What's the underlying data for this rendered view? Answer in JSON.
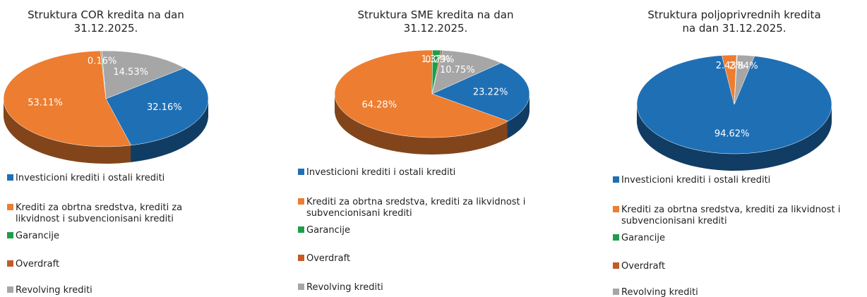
{
  "chart_data": [
    {
      "type": "pie",
      "title": "Struktura COR kredita na dan 31.12.2025.",
      "categories": [
        "Investicioni krediti i ostali krediti",
        "Krediti za obrtna sredstva, krediti za likvidnost i subvencionisani krediti",
        "Garancije",
        "Overdraft",
        "Revolving krediti"
      ],
      "values": [
        32.16,
        53.11,
        0.16,
        0.04,
        14.53
      ],
      "value_labels": [
        "32.16%",
        "53.11%",
        "0.16%",
        null,
        "14.53%"
      ],
      "colors": [
        "#1f6fb5",
        "#ed7d31",
        "#1e9e4a",
        "#c55a28",
        "#a6a6a6"
      ]
    },
    {
      "type": "pie",
      "title": "Struktura SME kredita na dan 31.12.2025.",
      "categories": [
        "Investicioni krediti i ostali krediti",
        "Krediti za obrtna sredstva, krediti za likvidnost i subvencionisani krediti",
        "Garancije",
        "Overdraft",
        "Revolving krediti"
      ],
      "values": [
        23.22,
        64.28,
        1.37,
        0.29,
        10.75
      ],
      "value_labels": [
        "23.22%",
        "64.28%",
        "1.37%",
        "0.29%",
        "10.75%"
      ],
      "colors": [
        "#1f6fb5",
        "#ed7d31",
        "#1e9e4a",
        "#c55a28",
        "#a6a6a6"
      ]
    },
    {
      "type": "pie",
      "title": "Struktura poljoprivrednih kredita na dan 31.12.2025.",
      "categories": [
        "Investicioni krediti i ostali krediti",
        "Krediti za obrtna sredstva, krediti za likvidnost i subvencionisani krediti",
        "Garancije",
        "Overdraft",
        "Revolving krediti"
      ],
      "values": [
        94.62,
        2.43,
        0.06,
        0.05,
        2.84
      ],
      "value_labels": [
        "94.62%",
        "2.43%",
        null,
        null,
        "2.84%"
      ],
      "colors": [
        "#1f6fb5",
        "#ed7d31",
        "#1e9e4a",
        "#c55a28",
        "#a6a6a6"
      ]
    }
  ]
}
